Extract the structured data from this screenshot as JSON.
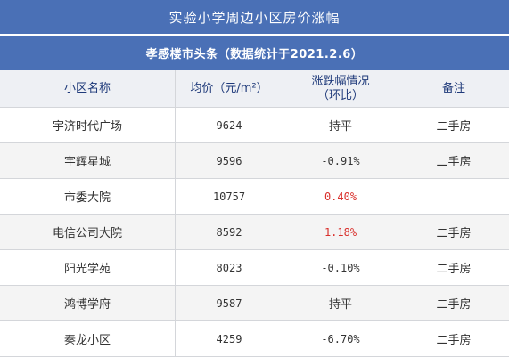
{
  "title": "实验小学周边小区房价涨幅",
  "subtitle": "孝感楼市头条（数据统计于2021.2.6）",
  "colors": {
    "banner": "#4a70b6",
    "header_text": "#1f3a7a",
    "rise": "#d9302c",
    "text": "#333333"
  },
  "table": {
    "headers": [
      {
        "label": "小区名称"
      },
      {
        "label": "均价（元/m²）"
      },
      {
        "label": "涨跌幅情况",
        "sub": "（环比）"
      },
      {
        "label": "备注"
      }
    ],
    "rows": [
      {
        "name": "宇济时代广场",
        "price": "9624",
        "change": "持平",
        "note": "二手房"
      },
      {
        "name": "宇辉星城",
        "price": "9596",
        "change": "-0.91%",
        "note": "二手房"
      },
      {
        "name": "市委大院",
        "price": "10757",
        "change": "0.40%",
        "note": ""
      },
      {
        "name": "电信公司大院",
        "price": "8592",
        "change": "1.18%",
        "note": "二手房"
      },
      {
        "name": "阳光学苑",
        "price": "8023",
        "change": "-0.10%",
        "note": "二手房"
      },
      {
        "name": "鸿博学府",
        "price": "9587",
        "change": "持平",
        "note": "二手房"
      },
      {
        "name": "秦龙小区",
        "price": "4259",
        "change": "-6.70%",
        "note": "二手房"
      }
    ]
  }
}
